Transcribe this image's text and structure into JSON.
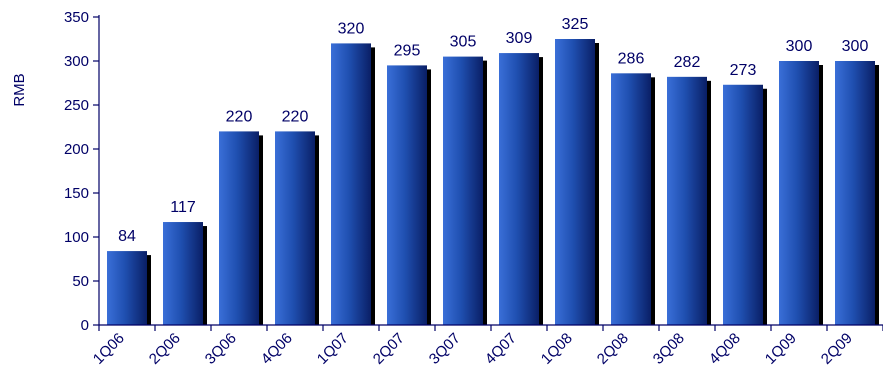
{
  "chart_data": {
    "type": "bar",
    "categories": [
      "1Q06",
      "2Q06",
      "3Q06",
      "4Q06",
      "1Q07",
      "2Q07",
      "3Q07",
      "4Q07",
      "1Q08",
      "2Q08",
      "3Q08",
      "4Q08",
      "1Q09",
      "2Q09"
    ],
    "series": [
      {
        "values": [
          84,
          117,
          220,
          220,
          320,
          295,
          305,
          309,
          325,
          286,
          282,
          273,
          300,
          300
        ]
      }
    ],
    "data_labels": [
      "84",
      "117",
      "220",
      "220",
      "320",
      "295",
      "305",
      "309",
      "325",
      "286",
      "282",
      "273",
      "300",
      "300"
    ],
    "title": "",
    "xlabel": "",
    "ylabel": "RMB",
    "ylim": [
      0,
      350
    ],
    "yticks": [
      0,
      50,
      100,
      150,
      200,
      250,
      300,
      350
    ],
    "grid": false,
    "legend": "none",
    "colors": {
      "bar_light": "#3a6fd8",
      "bar_mid": "#1f4fb0",
      "bar_dark": "#0a1f66",
      "bar_shadow": "#000000",
      "text": "#000066",
      "axis": "#000066"
    }
  }
}
